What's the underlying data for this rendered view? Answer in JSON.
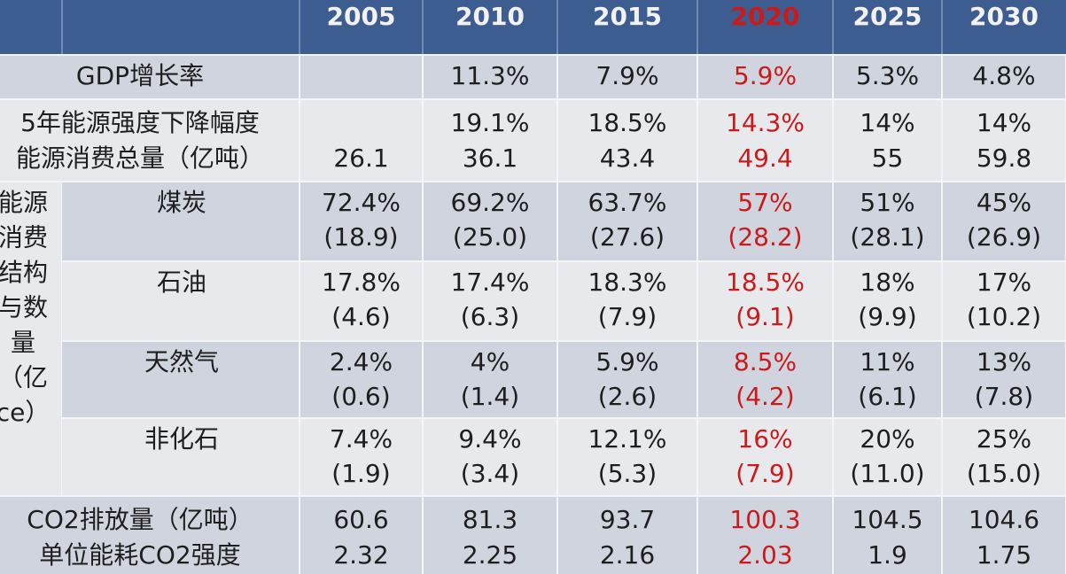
{
  "table": {
    "header": [
      "2005",
      "2010",
      "2015",
      "2020",
      "2025",
      "2030"
    ],
    "highlight": {
      "column": 3,
      "color": "#cc1a1a"
    },
    "rows": [
      {
        "label": [
          "GDP增长率"
        ],
        "cells": [
          null,
          [
            "11.3%"
          ],
          [
            "7.9%"
          ],
          [
            "5.9%"
          ],
          [
            "5.3%"
          ],
          [
            "4.8%"
          ]
        ]
      },
      {
        "label": [
          "5年能源强度下降幅度",
          "能源消费总量（亿吨）"
        ],
        "cells": [
          [
            null,
            "26.1"
          ],
          [
            "19.1%",
            "36.1"
          ],
          [
            "18.5%",
            "43.4"
          ],
          [
            "14.3%",
            "49.4"
          ],
          [
            "14%",
            "55"
          ],
          [
            "14%",
            "59.8"
          ]
        ]
      },
      {
        "label": [
          "能源",
          "消费",
          "结构",
          "与数",
          "量",
          "（亿",
          "ce）"
        ],
        "subrows": [
          {
            "label": "煤炭",
            "cells": [
              [
                "72.4%",
                "(18.9)"
              ],
              [
                "69.2%",
                "(25.0)"
              ],
              [
                "63.7%",
                "(27.6)"
              ],
              [
                "57%",
                "(28.2)"
              ],
              [
                "51%",
                "(28.1)"
              ],
              [
                "45%",
                "(26.9)"
              ]
            ]
          },
          {
            "label": "石油",
            "cells": [
              [
                "17.8%",
                "(4.6)"
              ],
              [
                "17.4%",
                "(6.3)"
              ],
              [
                "18.3%",
                "(7.9)"
              ],
              [
                "18.5%",
                "(9.1)"
              ],
              [
                "18%",
                "(9.9)"
              ],
              [
                "17%",
                "(10.2)"
              ]
            ]
          },
          {
            "label": "天然气",
            "cells": [
              [
                "2.4%",
                "(0.6)"
              ],
              [
                "4%",
                "(1.4)"
              ],
              [
                "5.9%",
                "(2.6)"
              ],
              [
                "8.5%",
                "(4.2)"
              ],
              [
                "11%",
                "(6.1)"
              ],
              [
                "13%",
                "(7.8)"
              ]
            ]
          },
          {
            "label": "非化石",
            "cells": [
              [
                "7.4%",
                "(1.9)"
              ],
              [
                "9.4%",
                "(3.4)"
              ],
              [
                "12.1%",
                "(5.3)"
              ],
              [
                "16%",
                "(7.9)"
              ],
              [
                "20%",
                "(11.0)"
              ],
              [
                "25%",
                "(15.0)"
              ]
            ]
          }
        ]
      },
      {
        "label": [
          "CO2排放量（亿吨）",
          "单位能耗CO2强度"
        ],
        "cells": [
          [
            "60.6",
            "2.32"
          ],
          [
            "81.3",
            "2.25"
          ],
          [
            "93.7",
            "2.16"
          ],
          [
            "100.3",
            "2.03"
          ],
          [
            "104.5",
            "1.9"
          ],
          [
            "104.6",
            "1.75"
          ]
        ]
      }
    ]
  }
}
